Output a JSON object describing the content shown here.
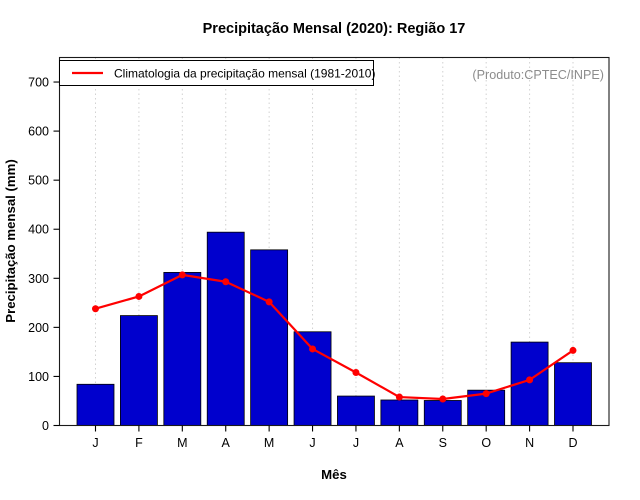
{
  "title": "Precipitação Mensal (2020): Região 17",
  "legend": {
    "label": "Climatologia da precipitação mensal (1981-2010)"
  },
  "annotation": "(Produto:CPTEC/INPE)",
  "colors": {
    "bar": "#0000CD",
    "line": "#FF0000",
    "grid": "#D2D2D2",
    "frame": "#1A1A1A",
    "annotation": "#8C8C8C",
    "background": "#FFFFFF"
  },
  "chart_data": {
    "type": "bar",
    "title": "Precipitação Mensal (2020): Região 17",
    "xlabel": "Mês",
    "ylabel": "Precipitação mensal (mm)",
    "categories": [
      "J",
      "F",
      "M",
      "A",
      "M",
      "J",
      "J",
      "A",
      "S",
      "O",
      "N",
      "D"
    ],
    "series": [
      {
        "name": "Precipitação mensal (2020)",
        "type": "bar",
        "color": "#0000CD",
        "values": [
          84,
          224,
          312,
          394,
          358,
          191,
          60,
          52,
          51,
          72,
          170,
          128
        ]
      },
      {
        "name": "Climatologia da precipitação mensal (1981-2010)",
        "type": "line",
        "color": "#FF0000",
        "values": [
          238,
          263,
          307,
          293,
          252,
          156,
          108,
          58,
          54,
          65,
          93,
          153
        ]
      }
    ],
    "ylim": [
      0,
      750
    ],
    "yticks": [
      0,
      100,
      200,
      300,
      400,
      500,
      600,
      700
    ],
    "grid": "vertical-dotted",
    "legend_position": "top-left"
  }
}
